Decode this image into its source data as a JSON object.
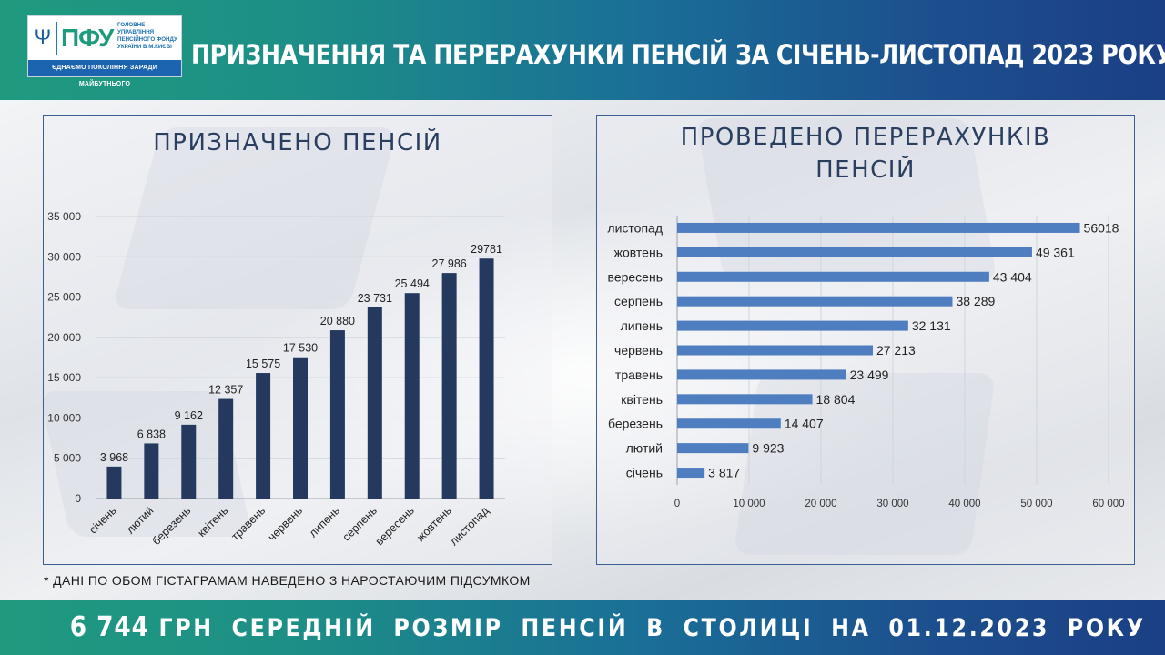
{
  "header": {
    "title": "ПРИЗНАЧЕННЯ ТА ПЕРЕРАХУНКИ ПЕНСІЙ ЗА СІЧЕНЬ-ЛИСТОПАД 2023 РОКУ *",
    "logo": {
      "abbr": "ПФУ",
      "desc": "ГОЛОВНЕ УПРАВЛІННЯ ПЕНСІЙНОГО ФОНДУ УКРАЇНИ В М.КИЄВІ",
      "slogan": "ЄДНАЄМО ПОКОЛІННЯ ЗАРАДИ МАЙБУТНЬОГО"
    }
  },
  "colors": {
    "bar_left": "#25395e",
    "bar_right": "#4f7ec0",
    "header_start": "#1f9a7f",
    "header_end": "#1b3f84"
  },
  "footnote": "* ДАНІ ПО ОБОМ ГІСТАГРАМАМ НАВЕДЕНО З НАРОСТАЮЧИМ  ПІДСУМКОМ",
  "footer": {
    "number": "6 744",
    "text": "ГРН СЕРЕДНІЙ РОЗМІР ПЕНСІЙ В СТОЛИЦІ НА 01.12.2023 РОКУ"
  },
  "chart_data": [
    {
      "type": "bar",
      "title": "ПРИЗНАЧЕНО ПЕНСІЙ",
      "categories": [
        "січень",
        "лютий",
        "березень",
        "квітень",
        "травень",
        "червень",
        "липень",
        "серпень",
        "вересень",
        "жовтень",
        "листопад"
      ],
      "values": [
        3968,
        6838,
        9162,
        12357,
        15575,
        17530,
        20880,
        23731,
        25494,
        27986,
        29781
      ],
      "value_labels": [
        "3 968",
        "6 838",
        "9 162",
        "12 357",
        "15 575",
        "17 530",
        "20 880",
        "23 731",
        "25 494",
        "27 986",
        "29781"
      ],
      "ylim": [
        0,
        35000
      ],
      "yticks": [
        0,
        5000,
        10000,
        15000,
        20000,
        25000,
        30000,
        35000
      ],
      "ytick_labels": [
        "0",
        "5 000",
        "10 000",
        "15 000",
        "20 000",
        "25 000",
        "30 000",
        "35 000"
      ],
      "grid": true
    },
    {
      "type": "bar",
      "orientation": "horizontal",
      "title_lines": [
        "ПРОВЕДЕНО ПЕРЕРАХУНКІВ",
        "ПЕНСІЙ"
      ],
      "categories": [
        "листопад",
        "жовтень",
        "вересень",
        "серпень",
        "липень",
        "червень",
        "травень",
        "квітень",
        "березень",
        "лютий",
        "січень"
      ],
      "values": [
        56018,
        49361,
        43404,
        38289,
        32131,
        27213,
        23499,
        18804,
        14407,
        9923,
        3817
      ],
      "value_labels": [
        "56018",
        "49 361",
        "43 404",
        "38 289",
        "32 131",
        "27 213",
        "23 499",
        "18 804",
        "14 407",
        "9 923",
        "3 817"
      ],
      "xlim": [
        0,
        60000
      ],
      "xticks": [
        0,
        10000,
        20000,
        30000,
        40000,
        50000,
        60000
      ],
      "xtick_labels": [
        "0",
        "10 000",
        "20 000",
        "30 000",
        "40 000",
        "50 000",
        "60 000"
      ],
      "grid": true
    }
  ]
}
